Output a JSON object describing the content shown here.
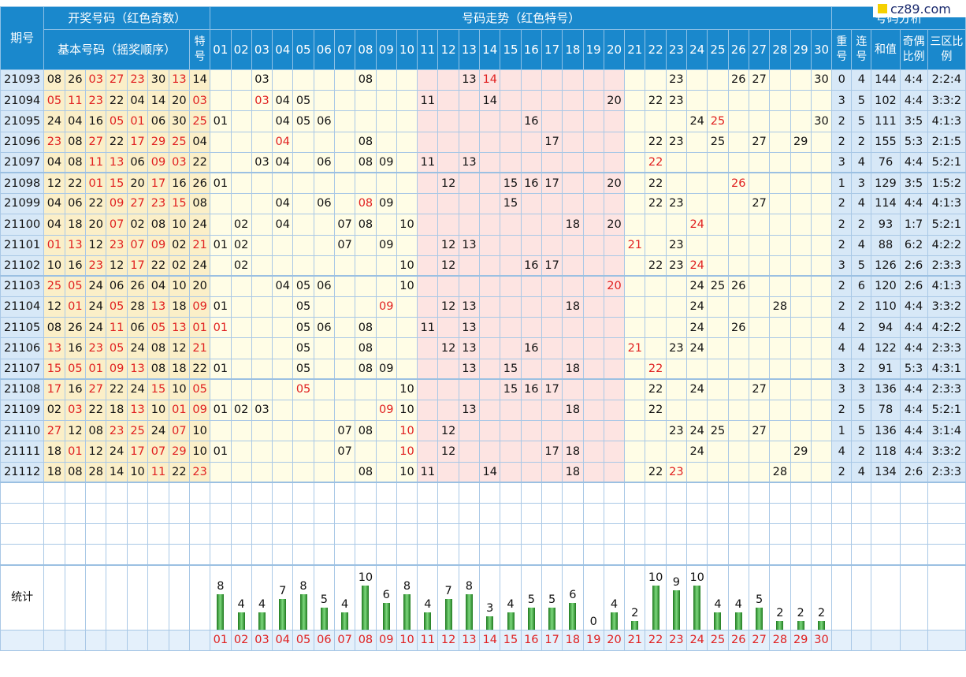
{
  "header": {
    "period": "期号",
    "draw_group": "开奖号码（红色奇数）",
    "basic": "基本号码（摇奖顺序）",
    "special": "特号",
    "trend": "号码走势（红色特号）",
    "analysis": "号码分析",
    "repeat": "重号",
    "consec": "连号",
    "sum": "和值",
    "odd_even": "奇偶比例",
    "zones": "三区比例"
  },
  "logo": "cz89.com",
  "trend_cols": [
    "01",
    "02",
    "03",
    "04",
    "05",
    "06",
    "07",
    "08",
    "09",
    "10",
    "11",
    "12",
    "13",
    "14",
    "15",
    "16",
    "17",
    "18",
    "19",
    "20",
    "21",
    "22",
    "23",
    "24",
    "25",
    "26",
    "27",
    "28",
    "29",
    "30"
  ],
  "rows": [
    {
      "p": "21093",
      "b": [
        "08",
        "26",
        "03",
        "27",
        "23",
        "30",
        "13"
      ],
      "s": "14",
      "r": 0,
      "c": 4,
      "sum": 144,
      "oe": "4:4",
      "z": "2:2:4"
    },
    {
      "p": "21094",
      "b": [
        "05",
        "11",
        "23",
        "22",
        "04",
        "14",
        "20"
      ],
      "s": "03",
      "r": 3,
      "c": 5,
      "sum": 102,
      "oe": "4:4",
      "z": "3:3:2"
    },
    {
      "p": "21095",
      "b": [
        "24",
        "04",
        "16",
        "05",
        "01",
        "06",
        "30"
      ],
      "s": "25",
      "r": 2,
      "c": 5,
      "sum": 111,
      "oe": "3:5",
      "z": "4:1:3"
    },
    {
      "p": "21096",
      "b": [
        "23",
        "08",
        "27",
        "22",
        "17",
        "29",
        "25"
      ],
      "s": "04",
      "r": 2,
      "c": 2,
      "sum": 155,
      "oe": "5:3",
      "z": "2:1:5"
    },
    {
      "p": "21097",
      "b": [
        "04",
        "08",
        "11",
        "13",
        "06",
        "09",
        "03"
      ],
      "s": "22",
      "r": 3,
      "c": 4,
      "sum": 76,
      "oe": "4:4",
      "z": "5:2:1"
    },
    {
      "p": "21098",
      "b": [
        "12",
        "22",
        "01",
        "15",
        "20",
        "17",
        "16"
      ],
      "s": "26",
      "r": 1,
      "c": 3,
      "sum": 129,
      "oe": "3:5",
      "z": "1:5:2"
    },
    {
      "p": "21099",
      "b": [
        "04",
        "06",
        "22",
        "09",
        "27",
        "23",
        "15"
      ],
      "s": "08",
      "r": 2,
      "c": 4,
      "sum": 114,
      "oe": "4:4",
      "z": "4:1:3"
    },
    {
      "p": "21100",
      "b": [
        "04",
        "18",
        "20",
        "07",
        "02",
        "08",
        "10"
      ],
      "s": "24",
      "r": 2,
      "c": 2,
      "sum": 93,
      "oe": "1:7",
      "z": "5:2:1"
    },
    {
      "p": "21101",
      "b": [
        "01",
        "13",
        "12",
        "23",
        "07",
        "09",
        "02"
      ],
      "s": "21",
      "r": 2,
      "c": 4,
      "sum": 88,
      "oe": "6:2",
      "z": "4:2:2"
    },
    {
      "p": "21102",
      "b": [
        "10",
        "16",
        "23",
        "12",
        "17",
        "22",
        "02"
      ],
      "s": "24",
      "r": 3,
      "c": 5,
      "sum": 126,
      "oe": "2:6",
      "z": "2:3:3"
    },
    {
      "p": "21103",
      "b": [
        "25",
        "05",
        "24",
        "06",
        "26",
        "04",
        "10"
      ],
      "s": "20",
      "r": 2,
      "c": 6,
      "sum": 120,
      "oe": "2:6",
      "z": "4:1:3"
    },
    {
      "p": "21104",
      "b": [
        "12",
        "01",
        "24",
        "05",
        "28",
        "13",
        "18"
      ],
      "s": "09",
      "r": 2,
      "c": 2,
      "sum": 110,
      "oe": "4:4",
      "z": "3:3:2"
    },
    {
      "p": "21105",
      "b": [
        "08",
        "26",
        "24",
        "11",
        "06",
        "05",
        "13"
      ],
      "s": "01",
      "r": 4,
      "c": 2,
      "sum": 94,
      "oe": "4:4",
      "z": "4:2:2"
    },
    {
      "p": "21106",
      "b": [
        "13",
        "16",
        "23",
        "05",
        "24",
        "08",
        "12"
      ],
      "s": "21",
      "r": 4,
      "c": 4,
      "sum": 122,
      "oe": "4:4",
      "z": "2:3:3"
    },
    {
      "p": "21107",
      "b": [
        "15",
        "05",
        "01",
        "09",
        "13",
        "08",
        "18"
      ],
      "s": "22",
      "r": 3,
      "c": 2,
      "sum": 91,
      "oe": "5:3",
      "z": "4:3:1"
    },
    {
      "p": "21108",
      "b": [
        "17",
        "16",
        "27",
        "22",
        "24",
        "15",
        "10"
      ],
      "s": "05",
      "r": 3,
      "c": 3,
      "sum": 136,
      "oe": "4:4",
      "z": "2:3:3"
    },
    {
      "p": "21109",
      "b": [
        "02",
        "03",
        "22",
        "18",
        "13",
        "10",
        "01"
      ],
      "s": "09",
      "r": 2,
      "c": 5,
      "sum": 78,
      "oe": "4:4",
      "z": "5:2:1"
    },
    {
      "p": "21110",
      "b": [
        "27",
        "12",
        "08",
        "23",
        "25",
        "24",
        "07"
      ],
      "s": "10",
      "r": 1,
      "c": 5,
      "sum": 136,
      "oe": "4:4",
      "z": "3:1:4"
    },
    {
      "p": "21111",
      "b": [
        "18",
        "01",
        "12",
        "24",
        "17",
        "07",
        "29"
      ],
      "s": "10",
      "r": 4,
      "c": 2,
      "sum": 118,
      "oe": "4:4",
      "z": "3:3:2"
    },
    {
      "p": "21112",
      "b": [
        "18",
        "08",
        "28",
        "14",
        "10",
        "11",
        "22"
      ],
      "s": "23",
      "r": 2,
      "c": 4,
      "sum": 134,
      "oe": "2:6",
      "z": "2:3:3"
    }
  ],
  "stats": {
    "label": "统计",
    "counts": [
      8,
      4,
      4,
      7,
      8,
      5,
      4,
      10,
      6,
      8,
      4,
      7,
      8,
      3,
      4,
      5,
      5,
      6,
      0,
      4,
      2,
      10,
      9,
      10,
      4,
      4,
      5,
      2,
      2,
      2
    ]
  },
  "colors": {
    "header": "#1a88cc",
    "odd": "#e02020",
    "bar": "#3ca83c",
    "trend_pink": "#fde4e2",
    "trend_yellow": "#fffde6"
  }
}
